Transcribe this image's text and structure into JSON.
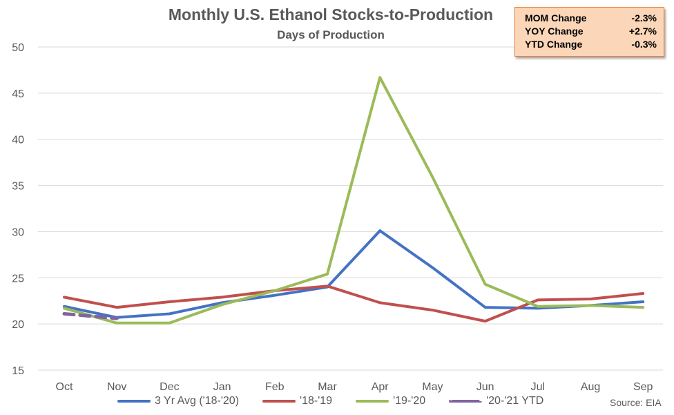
{
  "header": {
    "title": "Monthly U.S. Ethanol Stocks-to-Production",
    "subtitle": "Days of Production"
  },
  "stats_box": {
    "rows": [
      {
        "label": "MOM Change",
        "value": "-2.3%"
      },
      {
        "label": "YOY Change",
        "value": "+2.7%"
      },
      {
        "label": "YTD Change",
        "value": "-0.3%"
      }
    ]
  },
  "source": "Source: EIA",
  "chart_data": {
    "type": "line",
    "title": "Monthly U.S. Ethanol Stocks-to-Production",
    "subtitle": "Days of Production",
    "xlabel": "",
    "ylabel": "",
    "categories": [
      "Oct",
      "Nov",
      "Dec",
      "Jan",
      "Feb",
      "Mar",
      "Apr",
      "May",
      "Jun",
      "Jul",
      "Aug",
      "Sep"
    ],
    "ylim": [
      15,
      50
    ],
    "yticks": [
      15,
      20,
      25,
      30,
      35,
      40,
      45,
      50
    ],
    "grid": true,
    "legend_position": "bottom",
    "series": [
      {
        "name": "3 Yr Avg ('18-'20)",
        "color": "#4472c4",
        "dashed": false,
        "values": [
          21.9,
          20.7,
          21.1,
          22.3,
          23.1,
          24.0,
          30.1,
          26.1,
          21.8,
          21.7,
          22.0,
          22.4
        ]
      },
      {
        "name": "'18-'19",
        "color": "#c0504d",
        "dashed": false,
        "values": [
          22.9,
          21.8,
          22.4,
          22.9,
          23.6,
          24.1,
          22.3,
          21.5,
          20.3,
          22.6,
          22.7,
          23.3
        ]
      },
      {
        "name": "'19-'20",
        "color": "#9bbb59",
        "dashed": false,
        "values": [
          21.7,
          20.1,
          20.1,
          22.1,
          23.6,
          25.4,
          46.7,
          35.9,
          24.3,
          21.9,
          22.0,
          21.8
        ]
      },
      {
        "name": "'20-'21 YTD",
        "color": "#8064a2",
        "dashed": true,
        "values": [
          21.1,
          20.6,
          null,
          null,
          null,
          null,
          null,
          null,
          null,
          null,
          null,
          null
        ]
      }
    ]
  }
}
